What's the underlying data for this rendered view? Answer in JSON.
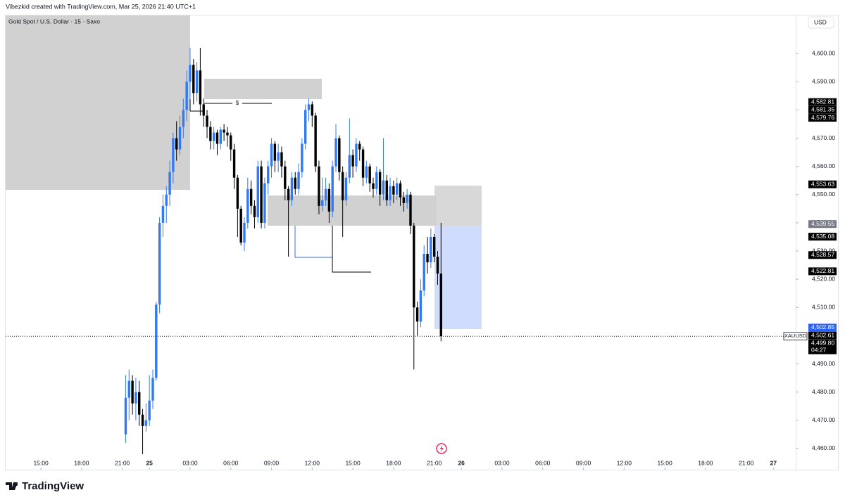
{
  "header": "Vibezkid created with TradingView.com, Mar 25, 2026 21:40 UTC+1",
  "brand": "TradingView",
  "annotation": "$",
  "chart_data": {
    "type": "candlestick",
    "title": "Gold Spot / U.S. Dollar · 15 · Saxo",
    "currency": "USD",
    "symbol": "XAUUSD",
    "countdown": "04:27",
    "up_color": "#3179f5",
    "down_color": "#000000",
    "xlim": [
      -10.4,
      222.6
    ],
    "ylim": [
      4452.5,
      4613.5
    ],
    "xticks": [
      {
        "value": 0,
        "label": "15:00"
      },
      {
        "value": 12,
        "label": "18:00"
      },
      {
        "value": 24,
        "label": "21:00"
      },
      {
        "value": 32,
        "label": "25"
      },
      {
        "value": 44,
        "label": "03:00"
      },
      {
        "value": 56,
        "label": "06:00"
      },
      {
        "value": 68,
        "label": "09:00"
      },
      {
        "value": 80,
        "label": "12:00"
      },
      {
        "value": 92,
        "label": "15:00"
      },
      {
        "value": 104,
        "label": "18:00"
      },
      {
        "value": 116,
        "label": "21:00"
      },
      {
        "value": 124,
        "label": "26"
      },
      {
        "value": 136,
        "label": "03:00"
      },
      {
        "value": 148,
        "label": "06:00"
      },
      {
        "value": 160,
        "label": "09:00"
      },
      {
        "value": 172,
        "label": "12:00"
      },
      {
        "value": 184,
        "label": "15:00"
      },
      {
        "value": 196,
        "label": "18:00"
      },
      {
        "value": 208,
        "label": "21:00"
      },
      {
        "value": 216,
        "label": "27"
      }
    ],
    "yticks": [
      {
        "value": 4460,
        "label": "4,460.00"
      },
      {
        "value": 4470,
        "label": "4,470.00"
      },
      {
        "value": 4480,
        "label": "4,480.00"
      },
      {
        "value": 4490,
        "label": "4,490.00"
      },
      {
        "value": 4500,
        "label": "4,500.00"
      },
      {
        "value": 4510,
        "label": "4,510.00"
      },
      {
        "value": 4520,
        "label": "4,520.00"
      },
      {
        "value": 4530,
        "label": "4,530.00"
      },
      {
        "value": 4540,
        "label": "4,540.00"
      },
      {
        "value": 4550,
        "label": "4,550.00"
      },
      {
        "value": 4560,
        "label": "4,560.00"
      },
      {
        "value": 4570,
        "label": "4,570.00"
      },
      {
        "value": 4580,
        "label": "4,580.00"
      },
      {
        "value": 4590,
        "label": "4,590.00"
      },
      {
        "value": 4600,
        "label": "4,600.00"
      }
    ],
    "x": [
      25,
      26,
      27,
      28,
      29,
      30,
      31,
      32,
      33,
      34,
      35,
      36,
      37,
      38,
      39,
      40,
      41,
      42,
      43,
      44,
      45,
      46,
      47,
      48,
      49,
      50,
      51,
      52,
      53,
      54,
      55,
      56,
      57,
      58,
      59,
      60,
      61,
      62,
      63,
      64,
      65,
      66,
      67,
      68,
      69,
      70,
      71,
      72,
      73,
      74,
      75,
      76,
      77,
      78,
      79,
      80,
      81,
      82,
      83,
      84,
      85,
      86,
      87,
      88,
      89,
      90,
      91,
      92,
      93,
      94,
      95,
      96,
      97,
      98,
      99,
      100,
      101,
      102,
      103,
      104,
      105,
      106,
      107,
      108,
      109,
      110,
      111,
      112,
      113,
      114,
      115,
      116,
      117,
      118
    ],
    "open": [
      4465,
      4478,
      4484,
      4476,
      4480,
      4472,
      4468,
      4470,
      4477,
      4485,
      4511,
      4540,
      4546,
      4550,
      4558,
      4570,
      4566,
      4574,
      4580,
      4590,
      4596,
      4586,
      4594,
      4582,
      4578,
      4574,
      4569,
      4572,
      4568,
      4573,
      4572,
      4571,
      4566,
      4556,
      4545,
      4533,
      4540,
      4552,
      4546,
      4542,
      4560,
      4540,
      4554,
      4560,
      4568,
      4562,
      4565,
      4560,
      4552,
      4548,
      4556,
      4552,
      4558,
      4568,
      4580,
      4582,
      4578,
      4560,
      4546,
      4548,
      4552,
      4544,
      4560,
      4570,
      4558,
      4548,
      4556,
      4564,
      4560,
      4568,
      4566,
      4556,
      4560,
      4554,
      4552,
      4558,
      4550,
      4555,
      4548,
      4553,
      4550,
      4554,
      4549,
      4547,
      4550,
      4539,
      4510,
      4505,
      4516,
      4529,
      4526,
      4535,
      4528,
      4522
    ],
    "high": [
      4486,
      4488,
      4486,
      4485,
      4484,
      4474,
      4476,
      4486,
      4488,
      4512,
      4542,
      4550,
      4553,
      4562,
      4572,
      4576,
      4578,
      4584,
      4594,
      4602,
      4598,
      4597,
      4602,
      4584,
      4580,
      4576,
      4574,
      4573,
      4574,
      4575,
      4574,
      4572,
      4568,
      4557,
      4546,
      4542,
      4556,
      4555,
      4548,
      4562,
      4562,
      4556,
      4562,
      4570,
      4569,
      4568,
      4567,
      4562,
      4553,
      4558,
      4558,
      4561,
      4570,
      4582,
      4584,
      4583,
      4579,
      4562,
      4556,
      4556,
      4554,
      4562,
      4575,
      4571,
      4560,
      4558,
      4577,
      4566,
      4570,
      4569,
      4567,
      4562,
      4561,
      4556,
      4560,
      4559,
      4570,
      4557,
      4556,
      4555,
      4556,
      4555,
      4551,
      4552,
      4551,
      4540,
      4512,
      4520,
      4532,
      4535,
      4538,
      4536,
      4530,
      4540
    ],
    "low": [
      4462,
      4470,
      4472,
      4470,
      4468,
      4458,
      4466,
      4468,
      4474,
      4484,
      4508,
      4535,
      4540,
      4546,
      4554,
      4562,
      4564,
      4570,
      4576,
      4584,
      4582,
      4583,
      4578,
      4574,
      4570,
      4566,
      4566,
      4564,
      4566,
      4569,
      4567,
      4562,
      4552,
      4535,
      4532,
      4530,
      4538,
      4543,
      4538,
      4540,
      4538,
      4538,
      4550,
      4556,
      4558,
      4558,
      4556,
      4548,
      4528,
      4546,
      4550,
      4550,
      4556,
      4566,
      4576,
      4574,
      4558,
      4543,
      4544,
      4546,
      4540,
      4542,
      4558,
      4555,
      4535,
      4546,
      4554,
      4556,
      4558,
      4562,
      4553,
      4554,
      4551,
      4549,
      4550,
      4546,
      4548,
      4546,
      4546,
      4547,
      4548,
      4546,
      4544,
      4545,
      4536,
      4488,
      4500,
      4503,
      4514,
      4522,
      4524,
      4526,
      4518,
      4498
    ],
    "close": [
      4478,
      4484,
      4476,
      4480,
      4472,
      4468,
      4470,
      4477,
      4485,
      4511,
      4540,
      4546,
      4550,
      4558,
      4570,
      4566,
      4574,
      4580,
      4590,
      4596,
      4586,
      4594,
      4582,
      4578,
      4574,
      4569,
      4572,
      4568,
      4573,
      4572,
      4571,
      4566,
      4556,
      4545,
      4533,
      4540,
      4552,
      4546,
      4542,
      4560,
      4540,
      4554,
      4560,
      4568,
      4562,
      4565,
      4560,
      4552,
      4548,
      4556,
      4552,
      4558,
      4568,
      4580,
      4582,
      4578,
      4560,
      4546,
      4548,
      4552,
      4544,
      4560,
      4570,
      4558,
      4548,
      4556,
      4564,
      4560,
      4568,
      4566,
      4556,
      4560,
      4554,
      4552,
      4558,
      4550,
      4555,
      4548,
      4553,
      4550,
      4554,
      4549,
      4547,
      4550,
      4539,
      4510,
      4505,
      4516,
      4529,
      4526,
      4535,
      4528,
      4522,
      4499.8
    ],
    "last_price_label": "4,499.80",
    "price_labels": [
      {
        "value": 4582.81,
        "label": "4,582.81",
        "color": "#000000"
      },
      {
        "value": 4581.35,
        "label": "4,581.35",
        "color": "#000000"
      },
      {
        "value": 4579.76,
        "label": "4,579.76",
        "color": "#000000"
      },
      {
        "value": 4553.63,
        "label": "4,553.63",
        "color": "#000000"
      },
      {
        "value": 4539.55,
        "label": "4,539.55",
        "color": "#787b86"
      },
      {
        "value": 4535.08,
        "label": "4,535.08",
        "color": "#000000"
      },
      {
        "value": 4528.57,
        "label": "4,528.57",
        "color": "#000000"
      },
      {
        "value": 4522.81,
        "label": "4,522.81",
        "color": "#000000"
      },
      {
        "value": 4502.85,
        "label": "4,502.85",
        "color": "#2962ff"
      },
      {
        "value": 4502.61,
        "label": "4,502.61",
        "color": "#000000"
      }
    ]
  }
}
